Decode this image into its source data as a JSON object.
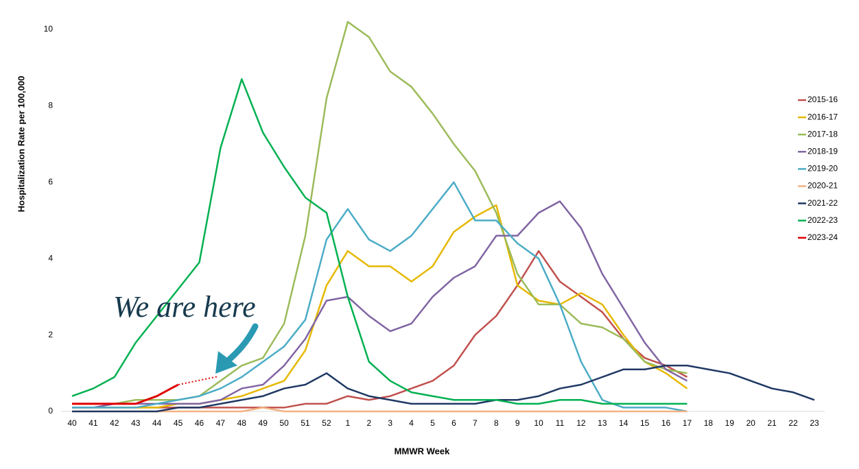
{
  "chart_data": {
    "type": "line",
    "xlabel": "MMWR Week",
    "ylabel": "Hospitalization Rate per 100,000",
    "annotation": "We are here",
    "categories": [
      "40",
      "41",
      "42",
      "43",
      "44",
      "45",
      "46",
      "47",
      "48",
      "49",
      "50",
      "51",
      "52",
      "1",
      "2",
      "3",
      "4",
      "5",
      "6",
      "7",
      "8",
      "9",
      "10",
      "11",
      "12",
      "13",
      "14",
      "15",
      "16",
      "17",
      "18",
      "19",
      "20",
      "21",
      "22",
      "23"
    ],
    "ylim": [
      0,
      10.5
    ],
    "yticks": [
      0,
      2,
      4,
      6,
      8,
      10
    ],
    "grid": false,
    "legend": "right",
    "series": [
      {
        "name": "2015-16",
        "color": "#c0504d",
        "values": [
          0.1,
          0.1,
          0.1,
          0.1,
          0.1,
          0.1,
          0.1,
          0.1,
          0.1,
          0.1,
          0.1,
          0.2,
          0.2,
          0.4,
          0.3,
          0.4,
          0.6,
          0.8,
          1.2,
          2.0,
          2.5,
          3.3,
          4.2,
          3.4,
          3.0,
          2.6,
          1.9,
          1.4,
          1.2,
          0.9,
          null,
          null,
          null,
          null,
          null,
          null
        ]
      },
      {
        "name": "2016-17",
        "color": "#e6b800",
        "values": [
          0.1,
          0.1,
          0.1,
          0.1,
          0.1,
          0.2,
          0.2,
          0.3,
          0.4,
          0.6,
          0.8,
          1.6,
          3.3,
          4.2,
          3.8,
          3.8,
          3.4,
          3.8,
          4.7,
          5.1,
          5.4,
          3.3,
          2.9,
          2.8,
          3.1,
          2.8,
          2.0,
          1.3,
          1.0,
          0.6,
          null,
          null,
          null,
          null,
          null,
          null
        ]
      },
      {
        "name": "2017-18",
        "color": "#9bbb59",
        "values": [
          0.2,
          0.2,
          0.2,
          0.3,
          0.3,
          0.3,
          0.4,
          0.8,
          1.2,
          1.4,
          2.3,
          4.6,
          8.2,
          10.2,
          9.8,
          8.9,
          8.5,
          7.8,
          7.0,
          6.3,
          5.2,
          3.6,
          2.8,
          2.8,
          2.3,
          2.2,
          1.9,
          1.3,
          1.1,
          1.0,
          null,
          null,
          null,
          null,
          null,
          null
        ]
      },
      {
        "name": "2018-19",
        "color": "#8064a2",
        "values": [
          0.1,
          0.1,
          0.2,
          0.2,
          0.2,
          0.2,
          0.2,
          0.3,
          0.6,
          0.7,
          1.2,
          1.9,
          2.9,
          3.0,
          2.5,
          2.1,
          2.3,
          3.0,
          3.5,
          3.8,
          4.6,
          4.6,
          5.2,
          5.5,
          4.8,
          3.6,
          2.7,
          1.8,
          1.1,
          0.8,
          null,
          null,
          null,
          null,
          null,
          null
        ]
      },
      {
        "name": "2019-20",
        "color": "#4bacc6",
        "values": [
          0.1,
          0.1,
          0.1,
          0.1,
          0.2,
          0.3,
          0.4,
          0.6,
          0.9,
          1.3,
          1.7,
          2.4,
          4.5,
          5.3,
          4.5,
          4.2,
          4.6,
          5.3,
          6.0,
          5.0,
          5.0,
          4.4,
          4.0,
          2.8,
          1.3,
          0.3,
          0.1,
          0.1,
          0.1,
          0.0,
          null,
          null,
          null,
          null,
          null,
          null
        ]
      },
      {
        "name": "2020-21",
        "color": "#f4b183",
        "values": [
          0,
          0,
          0,
          0,
          0,
          0,
          0,
          0,
          0,
          0.1,
          0,
          0,
          0,
          0,
          0,
          0,
          0,
          0,
          0,
          0,
          0,
          0,
          0,
          0,
          0,
          0,
          0,
          0,
          0,
          0,
          null,
          null,
          null,
          null,
          null,
          null
        ]
      },
      {
        "name": "2021-22",
        "color": "#1f3864",
        "values": [
          0,
          0,
          0,
          0,
          0,
          0.1,
          0.1,
          0.2,
          0.3,
          0.4,
          0.6,
          0.7,
          1.0,
          0.6,
          0.4,
          0.3,
          0.2,
          0.2,
          0.2,
          0.2,
          0.3,
          0.3,
          0.4,
          0.6,
          0.7,
          0.9,
          1.1,
          1.1,
          1.2,
          1.2,
          1.1,
          1.0,
          0.8,
          0.6,
          0.5,
          0.3
        ]
      },
      {
        "name": "2022-23",
        "color": "#00b050",
        "values": [
          0.4,
          0.6,
          0.9,
          1.8,
          2.5,
          3.2,
          3.9,
          6.9,
          8.7,
          7.3,
          6.4,
          5.6,
          5.2,
          3.0,
          1.3,
          0.8,
          0.5,
          0.4,
          0.3,
          0.3,
          0.3,
          0.2,
          0.2,
          0.3,
          0.3,
          0.2,
          0.2,
          0.2,
          0.2,
          0.2,
          null,
          null,
          null,
          null,
          null,
          null
        ]
      },
      {
        "name": "2023-24",
        "color": "#e00000",
        "values": [
          0.2,
          0.2,
          0.2,
          0.2,
          0.4,
          0.7,
          null,
          null,
          null,
          null,
          null,
          null,
          null,
          null,
          null,
          null,
          null,
          null,
          null,
          null,
          null,
          null,
          null,
          null,
          null,
          null,
          null,
          null,
          null,
          null,
          null,
          null,
          null,
          null,
          null,
          null
        ]
      }
    ]
  }
}
